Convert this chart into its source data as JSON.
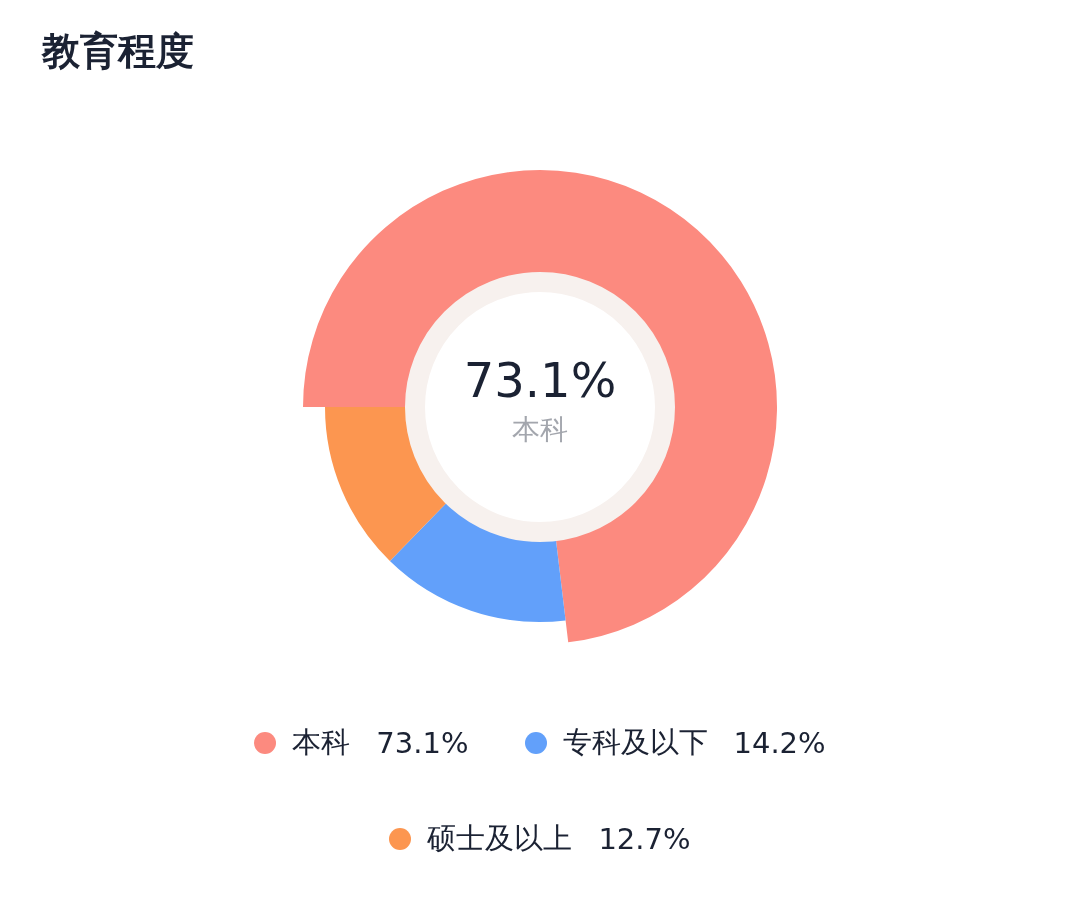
{
  "chart_data": {
    "type": "donut",
    "title": "教育程度",
    "categories": [
      "本科",
      "专科及以下",
      "硕士及以上"
    ],
    "values": [
      73.1,
      14.2,
      12.7
    ],
    "colors": [
      "#fc8a7f",
      "#62a0fa",
      "#fc9650"
    ],
    "value_labels": [
      "73.1%",
      "14.2%",
      "12.7%"
    ],
    "annotations": [
      "73.1%",
      "本科"
    ],
    "legend": "bottom"
  }
}
